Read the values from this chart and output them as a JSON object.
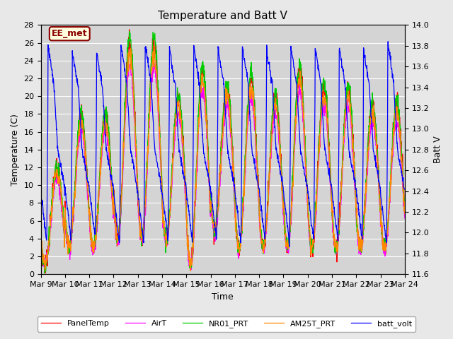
{
  "title": "Temperature and Batt V",
  "xlabel": "Time",
  "ylabel_left": "Temperature (C)",
  "ylabel_right": "Batt V",
  "ylim_left": [
    0,
    28
  ],
  "ylim_right": [
    11.6,
    14.0
  ],
  "yticks_left": [
    0,
    2,
    4,
    6,
    8,
    10,
    12,
    14,
    16,
    18,
    20,
    22,
    24,
    26,
    28
  ],
  "yticks_right": [
    11.6,
    11.8,
    12.0,
    12.2,
    12.4,
    12.6,
    12.8,
    13.0,
    13.2,
    13.4,
    13.6,
    13.8,
    14.0
  ],
  "xtick_labels": [
    "Mar 9",
    "Mar 10",
    "Mar 11",
    "Mar 12",
    "Mar 13",
    "Mar 14",
    "Mar 15",
    "Mar 16",
    "Mar 17",
    "Mar 18",
    "Mar 19",
    "Mar 20",
    "Mar 21",
    "Mar 22",
    "Mar 23",
    "Mar 24"
  ],
  "legend_labels": [
    "PanelTemp",
    "AirT",
    "NR01_PRT",
    "AM25T_PRT",
    "batt_volt"
  ],
  "legend_colors": [
    "#ff0000",
    "#ff00ff",
    "#00cc00",
    "#ff8800",
    "#0000ff"
  ],
  "annotation_text": "EE_met",
  "background_color": "#e8e8e8",
  "plot_bg_color": "#d4d4d4",
  "grid_color": "#ffffff",
  "title_fontsize": 11,
  "label_fontsize": 9,
  "tick_fontsize": 8,
  "legend_fontsize": 8
}
